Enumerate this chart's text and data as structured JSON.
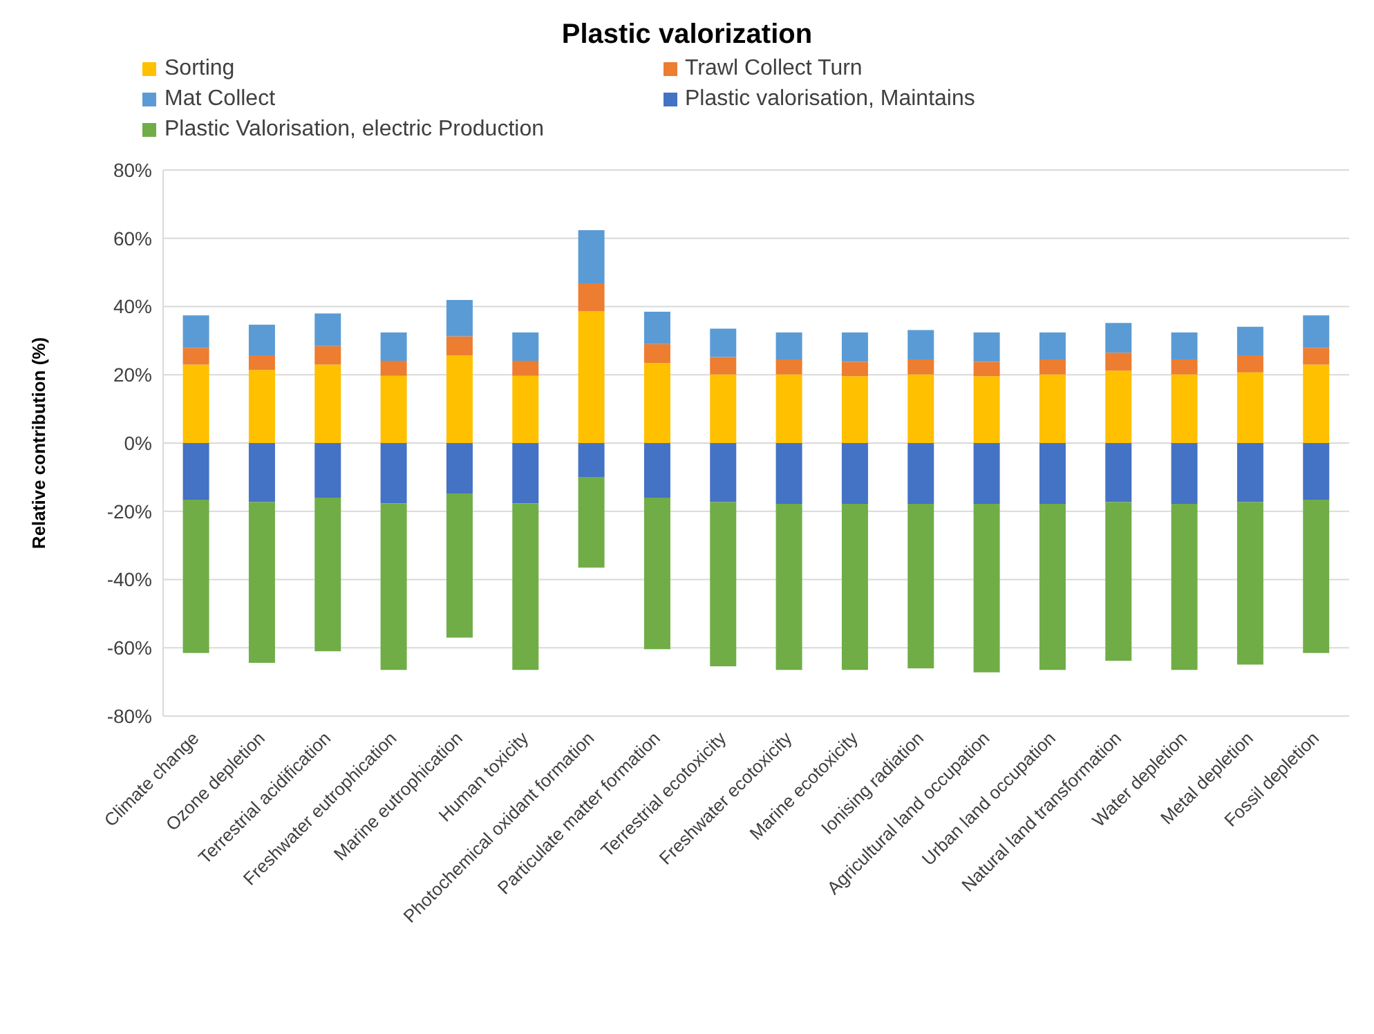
{
  "chart_data": {
    "type": "bar",
    "title": "Plastic valorization",
    "ylabel": "Relative contribution (%)",
    "stacked": true,
    "grid": "y",
    "legend": "top",
    "categories": [
      "Climate change",
      "Ozone depletion",
      "Terrestrial acidification",
      "Freshwater eutrophication",
      "Marine eutrophication",
      "Human toxicity",
      "Photochemical oxidant formation",
      "Particulate matter formation",
      "Terrestrial ecotoxicity",
      "Freshwater ecotoxicity",
      "Marine ecotoxicity",
      "Ionising radiation",
      "Agricultural land occupation",
      "Urban land occupation",
      "Natural land transformation",
      "Water depletion",
      "Metal depletion",
      "Fossil depletion"
    ],
    "series": [
      {
        "name": "Sorting",
        "color": "#ffc000",
        "values": [
          23,
          21.4,
          23,
          19.7,
          25.7,
          19.7,
          38.6,
          23.5,
          20.1,
          20.1,
          19.6,
          20.1,
          19.6,
          20.1,
          21.2,
          20.1,
          20.7,
          23
        ]
      },
      {
        "name": "Trawl Collect Turn",
        "color": "#ed7d31",
        "values": [
          4.9,
          4.3,
          5.4,
          4.4,
          5.6,
          4.4,
          8.2,
          5.5,
          5.1,
          4.4,
          4.2,
          4.4,
          4.2,
          4.4,
          5.3,
          4.4,
          5,
          4.9
        ]
      },
      {
        "name": "Mat Collect",
        "color": "#5b9bd5",
        "values": [
          9.5,
          9,
          9.6,
          8.3,
          10.6,
          8.3,
          15.6,
          9.5,
          8.3,
          7.9,
          8.6,
          8.6,
          8.6,
          7.9,
          8.7,
          7.9,
          8.4,
          9.5
        ]
      },
      {
        "name": "Plastic valorisation, Maintains",
        "color": "#4472c4",
        "values": [
          -16.6,
          -17.3,
          -16,
          -17.7,
          -14.8,
          -17.7,
          -10.1,
          -16,
          -17.3,
          -17.8,
          -17.8,
          -17.8,
          -17.8,
          -17.8,
          -17.3,
          -17.8,
          -17.3,
          -16.6
        ]
      },
      {
        "name": "Plastic Valorisation, electric Production",
        "color": "#70ad47",
        "values": [
          -44.9,
          -47.1,
          -45,
          -48.8,
          -42.2,
          -48.8,
          -26.4,
          -44.4,
          -48.1,
          -48.7,
          -48.7,
          -48.2,
          -49.4,
          -48.7,
          -46.5,
          -48.7,
          -47.6,
          -44.9
        ]
      }
    ],
    "ylim": [
      -80,
      80
    ],
    "yticks": [
      {
        "value": -80,
        "label": "-80%"
      },
      {
        "value": -60,
        "label": "-60%"
      },
      {
        "value": -40,
        "label": "-40%"
      },
      {
        "value": -20,
        "label": "-20%"
      },
      {
        "value": 0,
        "label": "0%"
      },
      {
        "value": 20,
        "label": "20%"
      },
      {
        "value": 40,
        "label": "40%"
      },
      {
        "value": 60,
        "label": "60%"
      },
      {
        "value": 80,
        "label": "80%"
      }
    ]
  }
}
